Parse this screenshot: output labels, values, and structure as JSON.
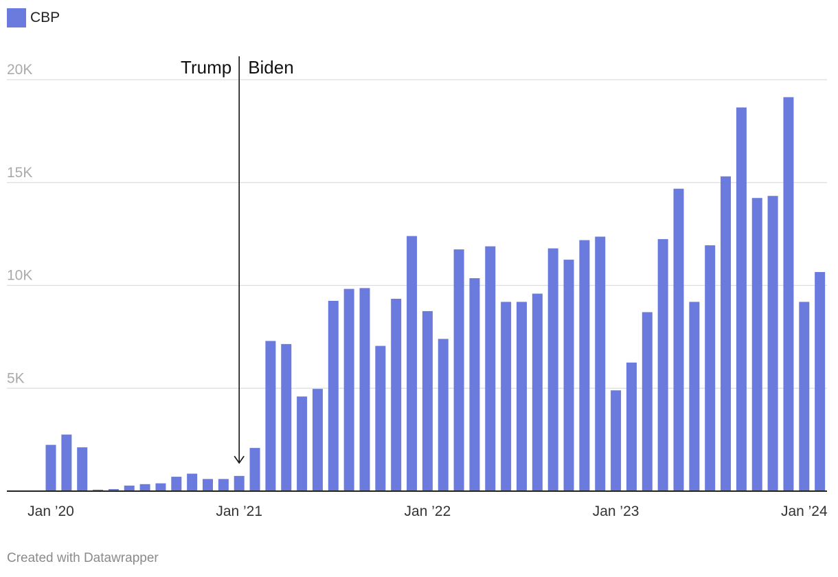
{
  "chart_data": {
    "type": "bar",
    "title": "",
    "xlabel": "",
    "ylabel": "",
    "ylim": [
      0,
      20000
    ],
    "yticks": [
      {
        "value": 5000,
        "label": "5K"
      },
      {
        "value": 10000,
        "label": "10K"
      },
      {
        "value": 15000,
        "label": "15K"
      },
      {
        "value": 20000,
        "label": "20K"
      }
    ],
    "grid": true,
    "series": [
      {
        "name": "CBP",
        "color": "#6a7bdd",
        "values": [
          2250,
          2750,
          2130,
          70,
          100,
          270,
          340,
          380,
          700,
          850,
          590,
          590,
          740,
          2100,
          7300,
          7150,
          4600,
          4970,
          9250,
          9830,
          9870,
          7060,
          9350,
          12400,
          8750,
          7400,
          11750,
          10350,
          11900,
          9200,
          9200,
          9600,
          11800,
          11250,
          12200,
          12370,
          4900,
          6250,
          8700,
          12250,
          14700,
          9200,
          11950,
          15300,
          18650,
          14250,
          14350,
          19150,
          9200,
          10650
        ]
      }
    ],
    "start_month": "2020-01",
    "x_ticks": [
      {
        "index": 0,
        "label": "Jan ’20"
      },
      {
        "index": 12,
        "label": "Jan ’21"
      },
      {
        "index": 24,
        "label": "Jan ’22"
      },
      {
        "index": 36,
        "label": "Jan ’23"
      },
      {
        "index": 48,
        "label": "Jan ’24"
      }
    ],
    "annotations": {
      "divider_index": 12,
      "left_label": "Trump",
      "right_label": "Biden"
    }
  },
  "legend": {
    "label": "CBP",
    "color": "#6a7bdd"
  },
  "credit": "Created with Datawrapper"
}
